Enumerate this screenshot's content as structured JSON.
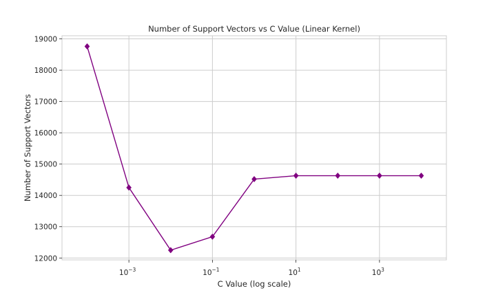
{
  "chart_data": {
    "type": "line",
    "title": "Number of Support Vectors vs C Value (Linear Kernel)",
    "xlabel": "C Value (log scale)",
    "ylabel": "Number of Support Vectors",
    "x_scale": "log",
    "xlim": [
      2.5e-05,
      40000
    ],
    "ylim": [
      11940,
      19100
    ],
    "x_ticks": [
      {
        "value": 0.001,
        "base": "10",
        "exp": "−3"
      },
      {
        "value": 0.1,
        "base": "10",
        "exp": "−1"
      },
      {
        "value": 10,
        "base": "10",
        "exp": "1"
      },
      {
        "value": 1000,
        "base": "10",
        "exp": "3"
      }
    ],
    "y_ticks": [
      12000,
      13000,
      14000,
      15000,
      16000,
      17000,
      18000,
      19000
    ],
    "grid": true,
    "legend": "none",
    "series": [
      {
        "color": "#800080",
        "marker": "diamond",
        "x": [
          0.0001,
          0.001,
          0.01,
          0.1,
          1,
          10,
          100,
          1000,
          10000
        ],
        "values": [
          18760,
          14250,
          12250,
          12680,
          14520,
          14630,
          14630,
          14630,
          14630
        ]
      }
    ]
  }
}
